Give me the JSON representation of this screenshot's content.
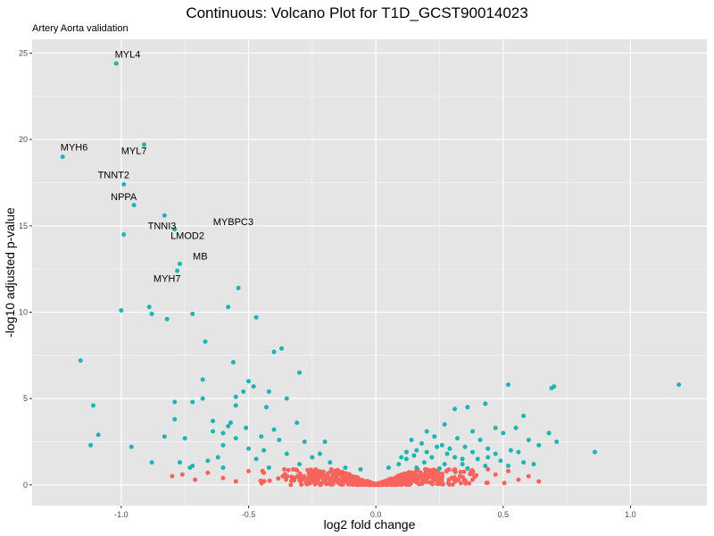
{
  "chart_data": {
    "type": "scatter",
    "title": "Continuous: Volcano Plot for T1D_GCST90014023",
    "subtitle": "Artery Aorta validation",
    "xlabel": "log2 fold change",
    "ylabel": "-log10 adjusted p-value",
    "xlim": [
      -1.35,
      1.3
    ],
    "ylim": [
      -1.2,
      25.8
    ],
    "x_ticks": [
      -1.0,
      -0.5,
      0.0,
      0.5,
      1.0
    ],
    "x_tick_labels": [
      "-1.0",
      "-0.5",
      "0.0",
      "0.5",
      "1.0"
    ],
    "y_ticks": [
      0,
      5,
      10,
      15,
      20,
      25
    ],
    "y_tick_labels": [
      "0",
      "5",
      "10",
      "15",
      "20",
      "25"
    ],
    "grid": true,
    "legend": "none",
    "colors": {
      "significant": "#1fb3b4",
      "not_significant": "#f8645c",
      "panel_background": "#e5e5e5",
      "grid_line": "#ffffff"
    },
    "labeled_points": [
      {
        "gene": "MYL4",
        "x": -1.02,
        "y": 24.4,
        "label_dx": 0.045,
        "label_dy": 0.35
      },
      {
        "gene": "MYL7",
        "x": -0.91,
        "y": 19.7,
        "label_dx": -0.04,
        "label_dy": -0.55
      },
      {
        "gene": "MYH6",
        "x": -1.23,
        "y": 19.0,
        "label_dx": 0.045,
        "label_dy": 0.35
      },
      {
        "gene": "TNNT2",
        "x": -0.99,
        "y": 17.4,
        "label_dx": -0.04,
        "label_dy": 0.35
      },
      {
        "gene": "NPPA",
        "x": -0.95,
        "y": 16.2,
        "label_dx": -0.04,
        "label_dy": 0.3
      },
      {
        "gene": "MYBPC3",
        "x": -0.83,
        "y": 15.6,
        "label_dx": 0.27,
        "label_dy": -0.55
      },
      {
        "gene": "LMOD2",
        "x": -0.79,
        "y": 14.8,
        "label_dx": 0.05,
        "label_dy": -0.55
      },
      {
        "gene": "TNNI3",
        "x": -0.99,
        "y": 14.5,
        "label_dx": 0.15,
        "label_dy": 0.3
      },
      {
        "gene": "MB",
        "x": -0.77,
        "y": 12.8,
        "label_dx": 0.08,
        "label_dy": 0.25
      },
      {
        "gene": "MYH7",
        "x": -0.78,
        "y": 12.4,
        "label_dx": -0.04,
        "label_dy": -0.65
      }
    ],
    "significant_points": [
      [
        -0.54,
        11.4
      ],
      [
        -0.89,
        10.3
      ],
      [
        -0.88,
        9.9
      ],
      [
        -1.0,
        10.1
      ],
      [
        -0.82,
        9.6
      ],
      [
        -0.72,
        9.9
      ],
      [
        -0.58,
        10.3
      ],
      [
        -0.47,
        9.7
      ],
      [
        -0.67,
        8.3
      ],
      [
        -0.37,
        7.9
      ],
      [
        -0.4,
        7.7
      ],
      [
        -1.16,
        7.2
      ],
      [
        -0.56,
        7.1
      ],
      [
        -0.3,
        6.5
      ],
      [
        -0.68,
        6.1
      ],
      [
        -0.5,
        6.0
      ],
      [
        -0.48,
        5.7
      ],
      [
        -0.42,
        5.4
      ],
      [
        -0.52,
        5.4
      ],
      [
        -0.55,
        5.1
      ],
      [
        -0.68,
        5.0
      ],
      [
        -0.35,
        5.0
      ],
      [
        -0.79,
        4.8
      ],
      [
        -0.72,
        4.8
      ],
      [
        -1.11,
        4.6
      ],
      [
        -0.55,
        4.6
      ],
      [
        -0.43,
        4.5
      ],
      [
        -0.79,
        3.8
      ],
      [
        -0.64,
        3.7
      ],
      [
        -0.57,
        3.6
      ],
      [
        -0.58,
        3.4
      ],
      [
        -0.31,
        3.6
      ],
      [
        -0.51,
        3.3
      ],
      [
        -0.4,
        3.2
      ],
      [
        -0.64,
        3.1
      ],
      [
        -0.6,
        3.0
      ],
      [
        -1.09,
        2.9
      ],
      [
        -0.83,
        2.8
      ],
      [
        -0.75,
        2.7
      ],
      [
        -0.55,
        2.7
      ],
      [
        -0.45,
        2.8
      ],
      [
        -0.38,
        2.6
      ],
      [
        -0.28,
        2.5
      ],
      [
        -0.2,
        2.5
      ],
      [
        -1.12,
        2.3
      ],
      [
        -0.96,
        2.2
      ],
      [
        -0.6,
        2.3
      ],
      [
        -0.5,
        2.1
      ],
      [
        -0.44,
        2.0
      ],
      [
        -0.35,
        1.8
      ],
      [
        -0.25,
        1.6
      ],
      [
        -0.22,
        1.8
      ],
      [
        -0.18,
        1.3
      ],
      [
        -0.62,
        1.6
      ],
      [
        -0.66,
        1.4
      ],
      [
        -0.47,
        1.5
      ],
      [
        -0.3,
        1.2
      ],
      [
        -0.88,
        1.3
      ],
      [
        -0.77,
        1.3
      ],
      [
        -0.72,
        1.1
      ],
      [
        -0.73,
        1.0
      ],
      [
        -0.6,
        1.0
      ],
      [
        -0.42,
        1.0
      ],
      [
        -0.12,
        1.0
      ],
      [
        -0.06,
        0.9
      ],
      [
        0.52,
        5.8
      ],
      [
        0.69,
        5.6
      ],
      [
        0.7,
        5.7
      ],
      [
        1.19,
        5.8
      ],
      [
        0.36,
        4.5
      ],
      [
        0.43,
        4.7
      ],
      [
        0.31,
        4.4
      ],
      [
        0.58,
        4.0
      ],
      [
        0.27,
        3.5
      ],
      [
        0.55,
        3.3
      ],
      [
        0.68,
        3.0
      ],
      [
        0.47,
        3.3
      ],
      [
        0.2,
        3.1
      ],
      [
        0.38,
        3.1
      ],
      [
        0.5,
        3.0
      ],
      [
        0.64,
        2.3
      ],
      [
        0.6,
        2.6
      ],
      [
        0.71,
        2.5
      ],
      [
        0.23,
        2.8
      ],
      [
        0.32,
        2.7
      ],
      [
        0.41,
        2.6
      ],
      [
        0.14,
        2.6
      ],
      [
        0.18,
        2.4
      ],
      [
        0.26,
        2.3
      ],
      [
        0.35,
        2.2
      ],
      [
        0.44,
        2.1
      ],
      [
        0.53,
        2.0
      ],
      [
        0.16,
        2.0
      ],
      [
        0.29,
        2.1
      ],
      [
        0.38,
        1.9
      ],
      [
        0.47,
        1.8
      ],
      [
        0.56,
        1.9
      ],
      [
        0.86,
        1.9
      ],
      [
        0.15,
        1.7
      ],
      [
        0.22,
        1.6
      ],
      [
        0.31,
        1.6
      ],
      [
        0.4,
        1.5
      ],
      [
        0.49,
        1.4
      ],
      [
        0.58,
        1.3
      ],
      [
        0.12,
        1.5
      ],
      [
        0.19,
        1.3
      ],
      [
        0.27,
        1.2
      ],
      [
        0.34,
        1.2
      ],
      [
        0.43,
        1.1
      ],
      [
        0.52,
        1.1
      ],
      [
        0.09,
        1.2
      ],
      [
        0.05,
        1.0
      ],
      [
        0.16,
        1.0
      ],
      [
        0.25,
        0.95
      ],
      [
        0.36,
        0.95
      ],
      [
        0.62,
        1.2
      ],
      [
        0.1,
        1.6
      ],
      [
        0.2,
        1.9
      ],
      [
        0.28,
        1.8
      ],
      [
        0.44,
        1.6
      ],
      [
        0.24,
        2.2
      ],
      [
        0.12,
        1.9
      ],
      [
        0.34,
        1.5
      ]
    ],
    "nonsignificant_points": [
      [
        -0.8,
        0.5
      ],
      [
        -0.76,
        0.6
      ],
      [
        -0.66,
        0.7
      ],
      [
        -0.71,
        0.3
      ],
      [
        -0.5,
        0.8
      ],
      [
        -0.44,
        0.7
      ],
      [
        -0.6,
        0.4
      ],
      [
        -0.55,
        0.2
      ],
      [
        0.47,
        0.6
      ],
      [
        0.56,
        0.3
      ],
      [
        0.6,
        0.5
      ],
      [
        0.64,
        0.2
      ],
      [
        0.52,
        0.8
      ],
      [
        0.44,
        0.9
      ],
      [
        -0.36,
        0.9
      ],
      [
        -0.3,
        0.4
      ],
      [
        0.38,
        0.3
      ]
    ],
    "nonsignificant_cloud_count": 700
  }
}
